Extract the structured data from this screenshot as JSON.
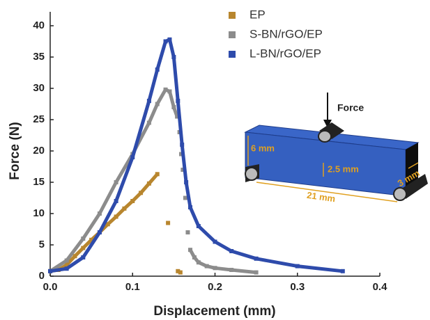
{
  "chart_data": {
    "type": "line",
    "xlabel": "Displacement (mm)",
    "ylabel": "Force (N)",
    "xlim": [
      0,
      0.4
    ],
    "ylim": [
      0,
      40
    ],
    "xticks": [
      {
        "value": 0,
        "label": "0.0"
      },
      0.1,
      0.2,
      0.3,
      0.4
    ],
    "yticks": [
      0,
      5,
      10,
      15,
      20,
      25,
      30,
      35,
      40
    ],
    "legend": "upper right",
    "series": [
      {
        "name": "EP",
        "color": "#b8862e",
        "x": [
          0,
          0.01,
          0.02,
          0.03,
          0.04,
          0.05,
          0.06,
          0.07,
          0.08,
          0.09,
          0.1,
          0.11,
          0.12,
          0.13,
          null,
          0.143,
          null,
          0.155,
          0.158
        ],
        "values": [
          0.8,
          1.0,
          1.8,
          3.2,
          4.5,
          5.8,
          7.0,
          8.3,
          9.5,
          10.8,
          12.0,
          13.3,
          14.8,
          16.3,
          null,
          8.5,
          null,
          0.8,
          0.6
        ]
      },
      {
        "name": "S-BN/rGO/EP",
        "color": "#8c8c8c",
        "x": [
          0,
          0.02,
          0.04,
          0.06,
          0.08,
          0.1,
          0.12,
          0.13,
          0.14,
          0.145,
          0.15,
          0.154,
          null,
          0.157,
          null,
          0.159,
          null,
          0.161,
          null,
          0.164,
          null,
          0.167,
          null,
          0.17,
          0.175,
          0.18,
          0.19,
          0.2,
          0.22,
          0.25
        ],
        "values": [
          0.8,
          2.5,
          6.0,
          10.0,
          15.0,
          19.5,
          24.5,
          27.5,
          29.8,
          29.5,
          27.0,
          25.5,
          null,
          23.0,
          null,
          19.5,
          null,
          17.0,
          null,
          12.5,
          null,
          7.0,
          null,
          4.2,
          3.0,
          2.2,
          1.6,
          1.3,
          1.0,
          0.6
        ]
      },
      {
        "name": "L-BN/rGO/EP",
        "color": "#2e4bab",
        "x": [
          0,
          0.02,
          0.04,
          0.06,
          0.08,
          0.1,
          0.12,
          0.13,
          0.14,
          0.145,
          0.15,
          0.155,
          0.16,
          0.165,
          0.17,
          0.18,
          0.2,
          0.22,
          0.25,
          0.3,
          0.355
        ],
        "values": [
          0.8,
          1.2,
          3.0,
          7.0,
          12.0,
          19.0,
          28.0,
          33.0,
          37.5,
          37.8,
          35.0,
          28.0,
          21.0,
          15.0,
          11.0,
          8.0,
          5.5,
          4.0,
          2.8,
          1.6,
          0.8
        ]
      }
    ]
  },
  "inset": {
    "force_label": "Force",
    "height": "6 mm",
    "notch": "2.5 mm",
    "length": "21 mm",
    "width": "3 mm"
  }
}
